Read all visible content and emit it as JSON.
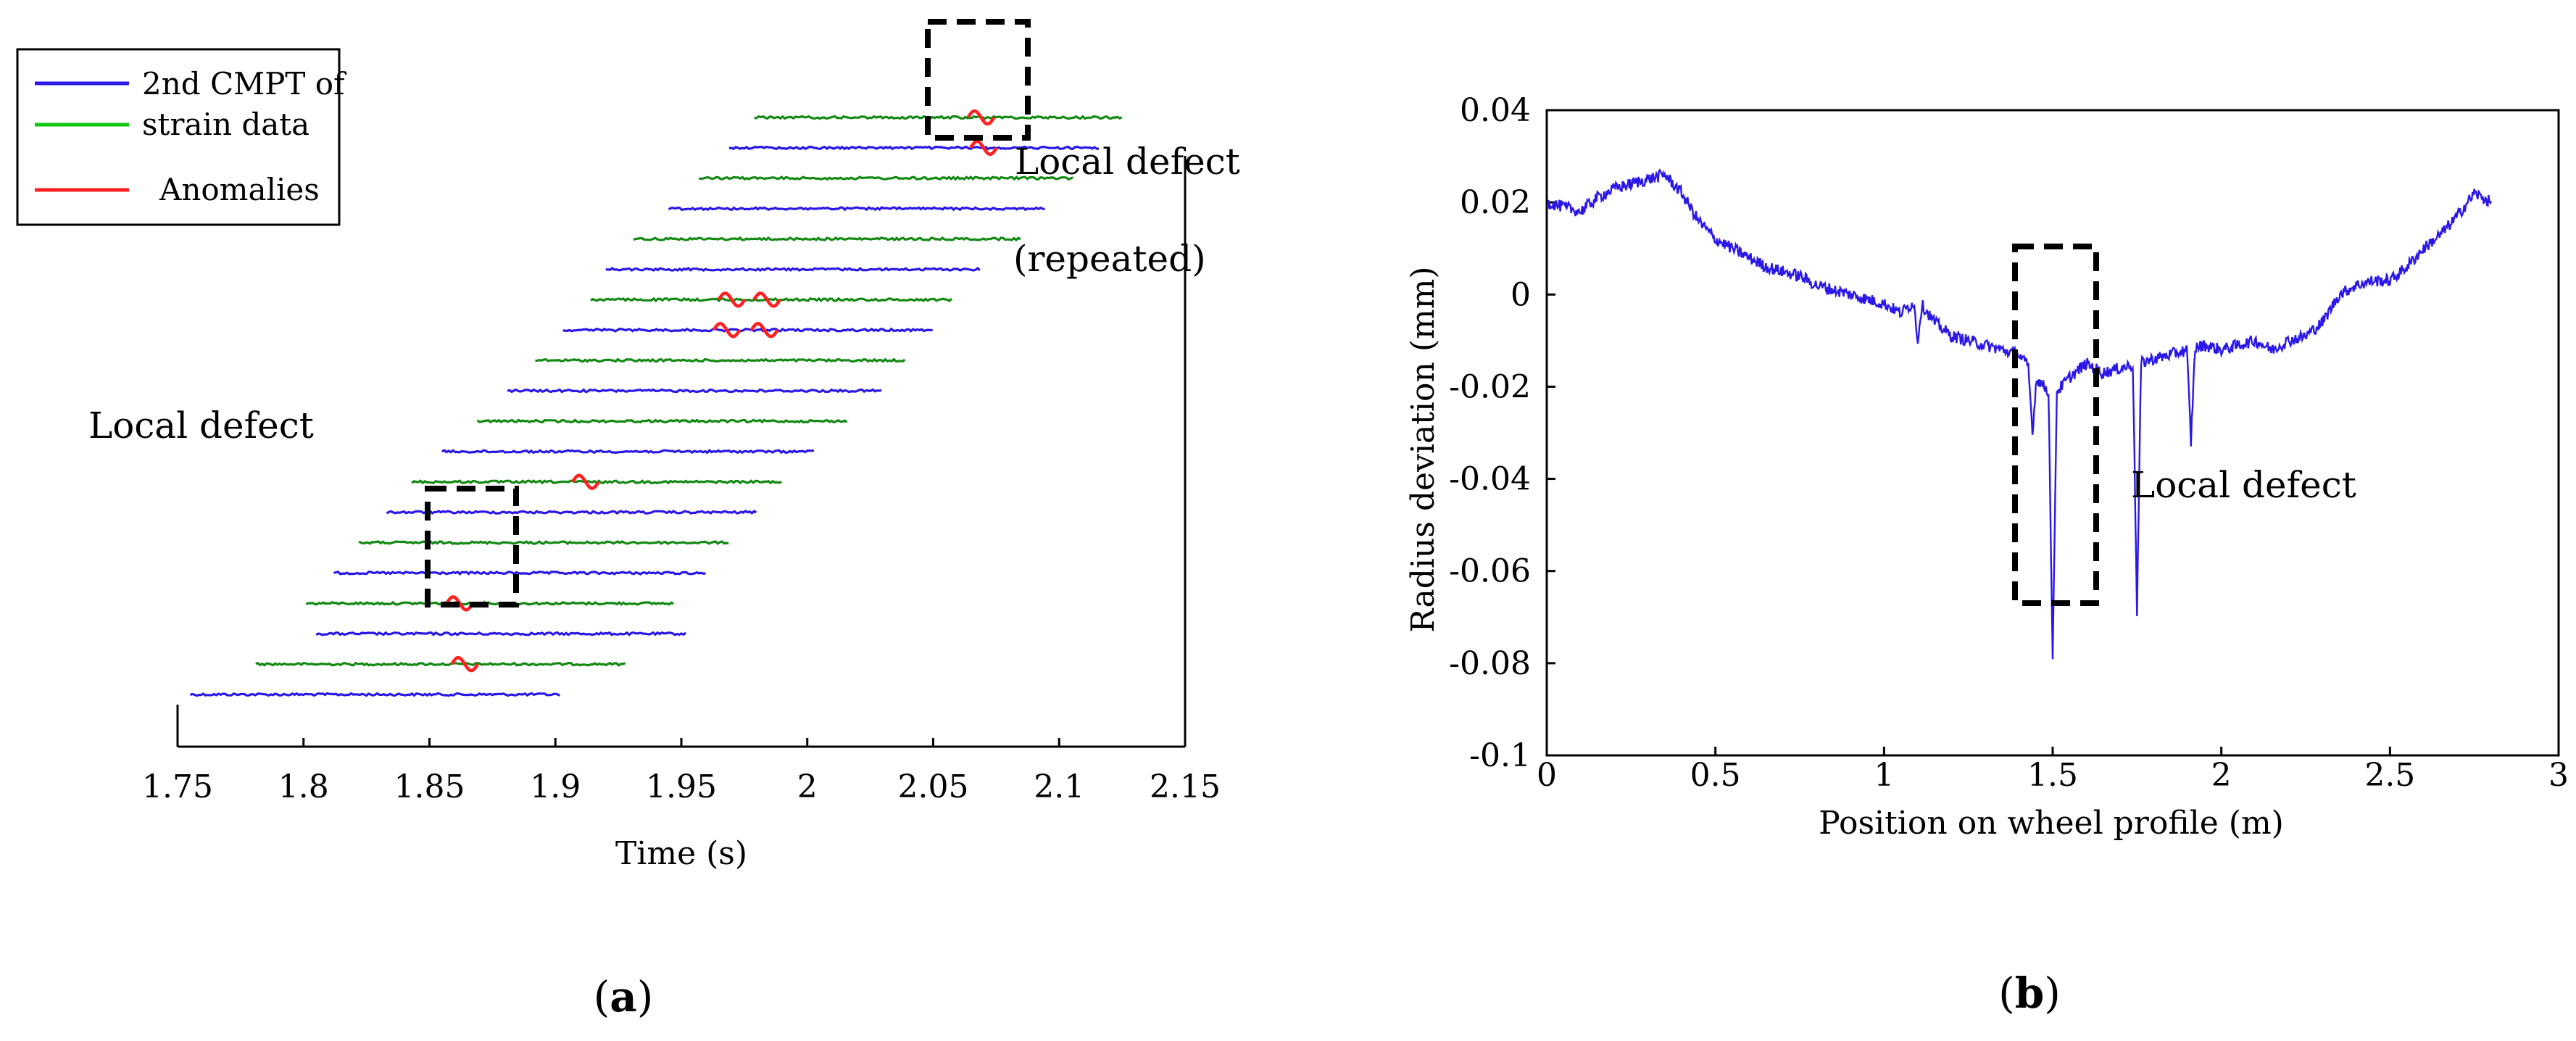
{
  "chart_data": [
    {
      "panel_label": "a",
      "type": "line",
      "xlabel": "Time (s)",
      "ylabel": "",
      "xlim": [
        1.75,
        2.15
      ],
      "xticks": [
        "1.75",
        "1.8",
        "1.85",
        "1.9",
        "1.95",
        "2",
        "2.05",
        "2.1",
        "2.15"
      ],
      "grid": false,
      "legend": {
        "placement": "top-left",
        "entries": [
          {
            "label_lines": [
              "2nd CMPT of",
              "strain data"
            ],
            "colors": [
              "#2b18e6",
              "#138a13"
            ]
          },
          {
            "label_lines": [
              "Anomalies"
            ],
            "colors": [
              "#ff2020"
            ]
          }
        ]
      },
      "trace_colors": {
        "blue": "#2b18e6",
        "green": "#138a13",
        "anomaly": "#ff2020"
      },
      "traces": [
        {
          "color": "blue",
          "start": 1.755,
          "end": 1.902,
          "anomalies": []
        },
        {
          "color": "green",
          "start": 1.781,
          "end": 1.928,
          "anomalies": [
            1.864
          ]
        },
        {
          "color": "blue",
          "start": 1.805,
          "end": 1.952,
          "anomalies": []
        },
        {
          "color": "green",
          "start": 1.801,
          "end": 1.947,
          "anomalies": [
            1.862
          ]
        },
        {
          "color": "blue",
          "start": 1.812,
          "end": 1.96,
          "anomalies": []
        },
        {
          "color": "green",
          "start": 1.822,
          "end": 1.969,
          "anomalies": []
        },
        {
          "color": "blue",
          "start": 1.833,
          "end": 1.98,
          "anomalies": []
        },
        {
          "color": "green",
          "start": 1.843,
          "end": 1.99,
          "anomalies": [
            1.912
          ]
        },
        {
          "color": "blue",
          "start": 1.855,
          "end": 2.003,
          "anomalies": []
        },
        {
          "color": "green",
          "start": 1.869,
          "end": 2.016,
          "anomalies": []
        },
        {
          "color": "blue",
          "start": 1.881,
          "end": 2.03,
          "anomalies": []
        },
        {
          "color": "green",
          "start": 1.892,
          "end": 2.039,
          "anomalies": []
        },
        {
          "color": "blue",
          "start": 1.903,
          "end": 2.05,
          "anomalies": [
            1.968,
            1.983
          ]
        },
        {
          "color": "green",
          "start": 1.914,
          "end": 2.058,
          "anomalies": [
            1.97,
            1.984
          ]
        },
        {
          "color": "blue",
          "start": 1.92,
          "end": 2.069,
          "anomalies": []
        },
        {
          "color": "green",
          "start": 1.931,
          "end": 2.085,
          "anomalies": []
        },
        {
          "color": "blue",
          "start": 1.945,
          "end": 2.095,
          "anomalies": []
        },
        {
          "color": "green",
          "start": 1.957,
          "end": 2.106,
          "anomalies": []
        },
        {
          "color": "blue",
          "start": 1.969,
          "end": 2.116,
          "anomalies": [
            2.07
          ]
        },
        {
          "color": "green",
          "start": 1.979,
          "end": 2.125,
          "anomalies": [
            2.069
          ]
        }
      ],
      "annotations": [
        {
          "text": "Local defect"
        },
        {
          "text": "Local defect"
        },
        {
          "text": "(repeated)"
        }
      ]
    },
    {
      "panel_label": "b",
      "type": "line",
      "xlabel": "Position on wheel profile (m)",
      "ylabel": "Radius deviation (mm)",
      "xlim": [
        0,
        3
      ],
      "ylim": [
        -0.1,
        0.04
      ],
      "xticks": [
        "0",
        "0.5",
        "1",
        "1.5",
        "2",
        "2.5",
        "3"
      ],
      "yticks": [
        "0.04",
        "0.02",
        "0",
        "-0.02",
        "-0.04",
        "-0.06",
        "-0.08",
        "-0.1"
      ],
      "grid": false,
      "series": [
        {
          "color": "#2b18e6",
          "x": [
            0,
            0.05,
            0.1,
            0.15,
            0.2,
            0.25,
            0.3,
            0.35,
            0.4,
            0.45,
            0.5,
            0.55,
            0.6,
            0.65,
            0.7,
            0.75,
            0.8,
            0.85,
            0.9,
            0.95,
            1.0,
            1.05,
            1.1,
            1.15,
            1.2,
            1.25,
            1.3,
            1.35,
            1.4,
            1.45,
            1.5,
            1.55,
            1.6,
            1.65,
            1.7,
            1.75,
            1.8,
            1.85,
            1.9,
            1.95,
            2.0,
            2.05,
            2.1,
            2.15,
            2.2,
            2.25,
            2.3,
            2.35,
            2.4,
            2.45,
            2.5,
            2.55,
            2.6,
            2.65,
            2.7,
            2.75,
            2.8
          ],
          "y": [
            0.02,
            0.019,
            0.018,
            0.021,
            0.023,
            0.024,
            0.025,
            0.026,
            0.022,
            0.016,
            0.012,
            0.01,
            0.008,
            0.006,
            0.005,
            0.004,
            0.002,
            0.001,
            0.0,
            -0.001,
            -0.002,
            -0.004,
            -0.001,
            -0.006,
            -0.009,
            -0.01,
            -0.011,
            -0.012,
            -0.013,
            -0.018,
            -0.022,
            -0.018,
            -0.015,
            -0.017,
            -0.016,
            -0.015,
            -0.014,
            -0.013,
            -0.012,
            -0.011,
            -0.012,
            -0.011,
            -0.01,
            -0.012,
            -0.01,
            -0.009,
            -0.006,
            0.0,
            0.002,
            0.003,
            0.003,
            0.006,
            0.01,
            0.013,
            0.017,
            0.022,
            0.02
          ]
        }
      ],
      "dips": [
        {
          "x": 1.5,
          "y": -0.08
        },
        {
          "x": 1.75,
          "y": -0.069
        },
        {
          "x": 1.91,
          "y": -0.032
        },
        {
          "x": 1.44,
          "y": -0.03
        },
        {
          "x": 1.1,
          "y": -0.01
        }
      ],
      "annotations": [
        {
          "text": "Local defect"
        }
      ]
    }
  ]
}
